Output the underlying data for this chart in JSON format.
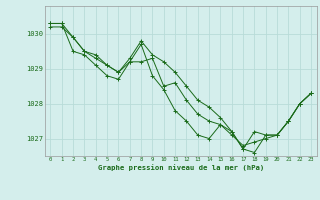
{
  "title": "Graphe pression niveau de la mer (hPa)",
  "bg_color": "#d4eeec",
  "grid_color": "#b8dbd8",
  "line_color": "#1a6b1a",
  "marker_color": "#1a6b1a",
  "xlim": [
    -0.5,
    23.5
  ],
  "ylim": [
    1026.5,
    1030.8
  ],
  "yticks": [
    1027,
    1028,
    1029,
    1030
  ],
  "xticks": [
    0,
    1,
    2,
    3,
    4,
    5,
    6,
    7,
    8,
    9,
    10,
    11,
    12,
    13,
    14,
    15,
    16,
    17,
    18,
    19,
    20,
    21,
    22,
    23
  ],
  "series": [
    {
      "x": [
        0,
        1,
        2,
        3,
        4,
        5,
        6,
        7,
        8,
        9,
        10,
        11,
        12,
        13,
        14,
        15,
        16,
        17,
        18,
        19,
        20,
        21,
        22,
        23
      ],
      "y": [
        1030.3,
        1030.3,
        1029.9,
        1029.5,
        1029.3,
        1029.1,
        1028.9,
        1029.3,
        1029.8,
        1029.4,
        1029.2,
        1028.9,
        1028.5,
        1028.1,
        1027.9,
        1027.6,
        1027.2,
        1026.7,
        1027.2,
        1027.1,
        1027.1,
        1027.5,
        1028.0,
        1028.3
      ]
    },
    {
      "x": [
        0,
        1,
        2,
        3,
        4,
        5,
        6,
        7,
        8,
        9,
        10,
        11,
        12,
        13,
        14,
        15,
        16,
        17,
        18,
        19,
        20,
        21,
        22,
        23
      ],
      "y": [
        1030.3,
        1030.3,
        1029.5,
        1029.4,
        1029.1,
        1028.8,
        1028.7,
        1029.2,
        1029.7,
        1028.8,
        1028.4,
        1027.8,
        1027.5,
        1027.1,
        1027.0,
        1027.4,
        1027.2,
        1026.7,
        1026.6,
        1027.1,
        1027.1,
        1027.5,
        1028.0,
        1028.3
      ]
    },
    {
      "x": [
        0,
        1,
        2,
        3,
        4,
        5,
        6,
        7,
        8,
        9,
        10,
        11,
        12,
        13,
        14,
        15,
        16,
        17,
        18,
        19,
        20,
        21,
        22,
        23
      ],
      "y": [
        1030.2,
        1030.2,
        1029.9,
        1029.5,
        1029.4,
        1029.1,
        1028.9,
        1029.2,
        1029.2,
        1029.3,
        1028.5,
        1028.6,
        1028.1,
        1027.7,
        1027.5,
        1027.4,
        1027.1,
        1026.8,
        1026.9,
        1027.0,
        1027.1,
        1027.5,
        1028.0,
        1028.3
      ]
    }
  ]
}
